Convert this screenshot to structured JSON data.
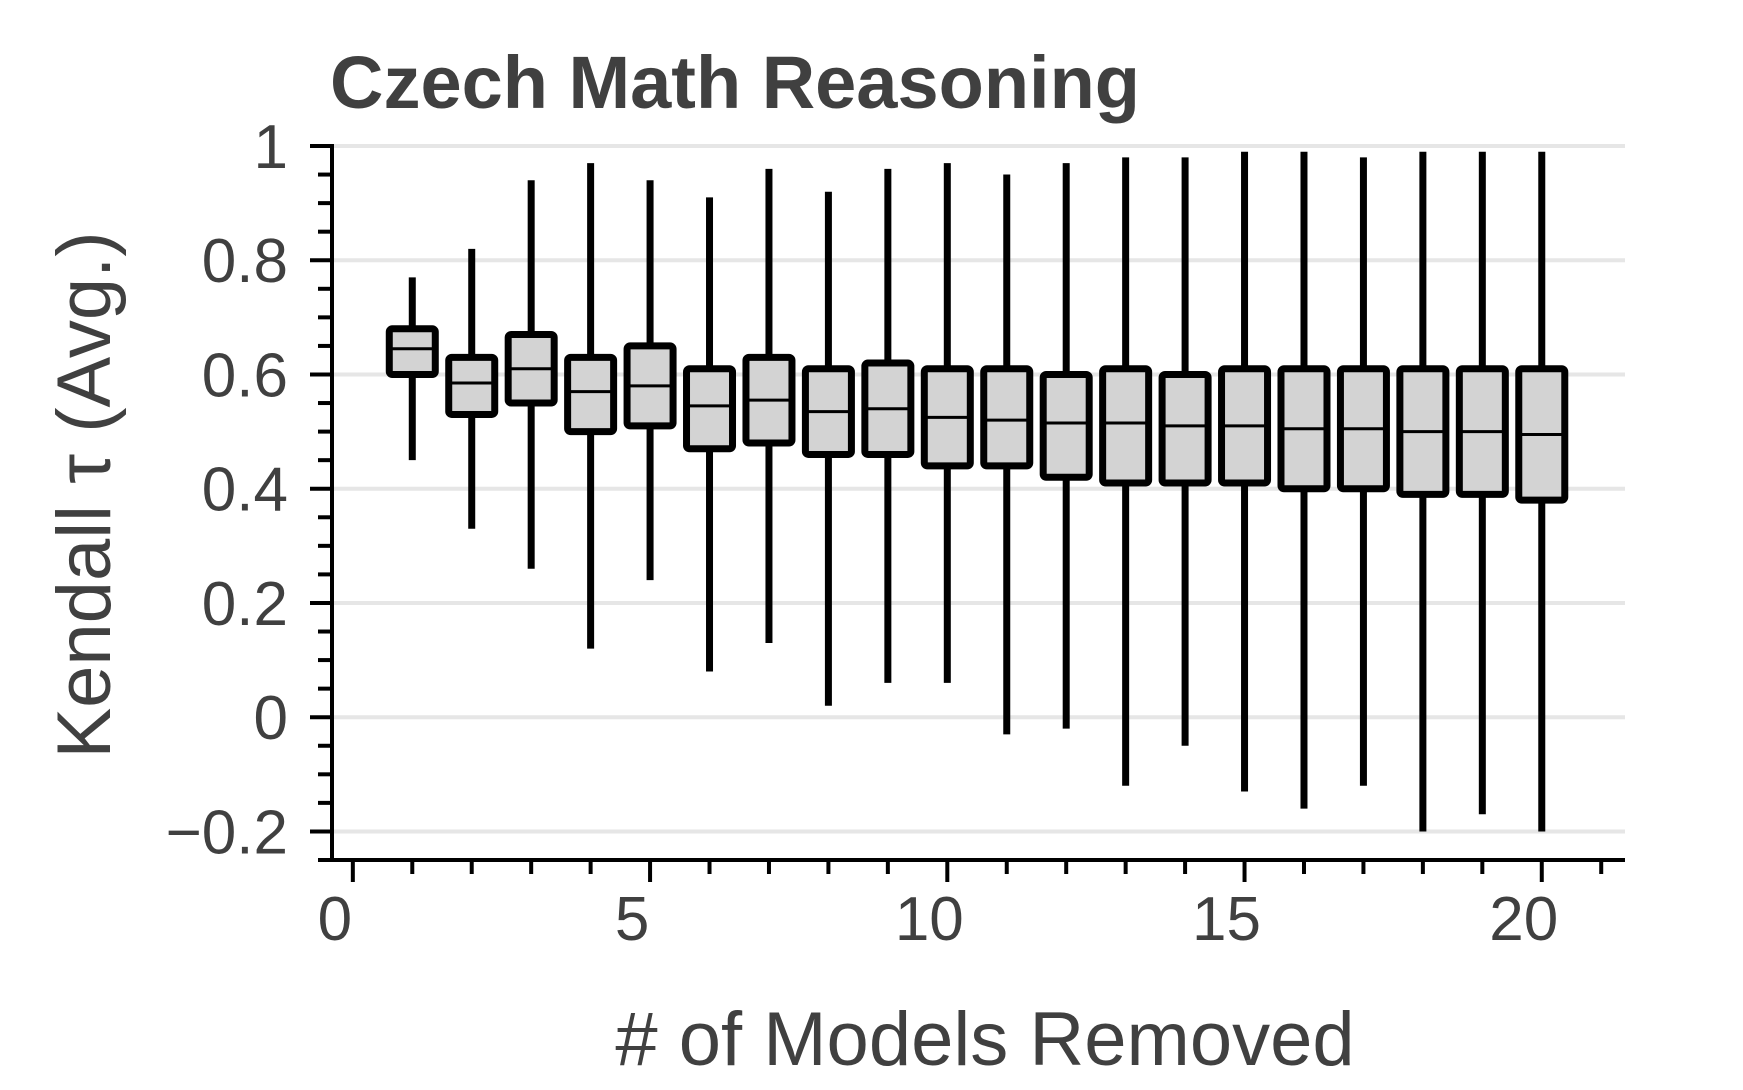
{
  "chart_data": {
    "type": "box",
    "title": "Czech Math Reasoning",
    "xlabel": "# of Models Removed",
    "ylabel": "Kendall τ (Avg.)",
    "xlim": [
      -0.3,
      21.4
    ],
    "ylim": [
      -0.25,
      1.0
    ],
    "x_ticks": [
      0,
      5,
      10,
      15,
      20
    ],
    "x_tick_labels": [
      "0",
      "5",
      "10",
      "15",
      "20"
    ],
    "y_ticks": [
      -0.2,
      0,
      0.2,
      0.4,
      0.6,
      0.8,
      1
    ],
    "y_tick_labels": [
      "−0.2",
      "0",
      "0.2",
      "0.4",
      "0.6",
      "0.8",
      "1"
    ],
    "grid": true,
    "box_color": "#d3d3d3",
    "line_color": "#000000",
    "text_color": "#404040",
    "grid_color": "#e6e6e6",
    "boxes": [
      {
        "x": 1,
        "whislo": 0.45,
        "q1": 0.6,
        "med": 0.645,
        "q3": 0.68,
        "whishi": 0.77
      },
      {
        "x": 2,
        "whislo": 0.33,
        "q1": 0.53,
        "med": 0.585,
        "q3": 0.63,
        "whishi": 0.82
      },
      {
        "x": 3,
        "whislo": 0.26,
        "q1": 0.55,
        "med": 0.61,
        "q3": 0.67,
        "whishi": 0.94
      },
      {
        "x": 4,
        "whislo": 0.12,
        "q1": 0.5,
        "med": 0.57,
        "q3": 0.63,
        "whishi": 0.97
      },
      {
        "x": 5,
        "whislo": 0.24,
        "q1": 0.51,
        "med": 0.58,
        "q3": 0.65,
        "whishi": 0.94
      },
      {
        "x": 6,
        "whislo": 0.08,
        "q1": 0.47,
        "med": 0.545,
        "q3": 0.61,
        "whishi": 0.91
      },
      {
        "x": 7,
        "whislo": 0.13,
        "q1": 0.48,
        "med": 0.555,
        "q3": 0.63,
        "whishi": 0.96
      },
      {
        "x": 8,
        "whislo": 0.02,
        "q1": 0.46,
        "med": 0.535,
        "q3": 0.61,
        "whishi": 0.92
      },
      {
        "x": 9,
        "whislo": 0.06,
        "q1": 0.46,
        "med": 0.54,
        "q3": 0.62,
        "whishi": 0.96
      },
      {
        "x": 10,
        "whislo": 0.06,
        "q1": 0.44,
        "med": 0.525,
        "q3": 0.61,
        "whishi": 0.97
      },
      {
        "x": 11,
        "whislo": -0.03,
        "q1": 0.44,
        "med": 0.52,
        "q3": 0.61,
        "whishi": 0.95
      },
      {
        "x": 12,
        "whislo": -0.02,
        "q1": 0.42,
        "med": 0.515,
        "q3": 0.6,
        "whishi": 0.97
      },
      {
        "x": 13,
        "whislo": -0.12,
        "q1": 0.41,
        "med": 0.515,
        "q3": 0.61,
        "whishi": 0.98
      },
      {
        "x": 14,
        "whislo": -0.05,
        "q1": 0.41,
        "med": 0.51,
        "q3": 0.6,
        "whishi": 0.98
      },
      {
        "x": 15,
        "whislo": -0.13,
        "q1": 0.41,
        "med": 0.51,
        "q3": 0.61,
        "whishi": 0.99
      },
      {
        "x": 16,
        "whislo": -0.16,
        "q1": 0.4,
        "med": 0.505,
        "q3": 0.61,
        "whishi": 0.99
      },
      {
        "x": 17,
        "whislo": -0.12,
        "q1": 0.4,
        "med": 0.505,
        "q3": 0.61,
        "whishi": 0.98
      },
      {
        "x": 18,
        "whislo": -0.2,
        "q1": 0.39,
        "med": 0.5,
        "q3": 0.61,
        "whishi": 0.99
      },
      {
        "x": 19,
        "whislo": -0.17,
        "q1": 0.39,
        "med": 0.5,
        "q3": 0.61,
        "whishi": 0.99
      },
      {
        "x": 20,
        "whislo": -0.2,
        "q1": 0.38,
        "med": 0.495,
        "q3": 0.61,
        "whishi": 0.99
      }
    ]
  }
}
